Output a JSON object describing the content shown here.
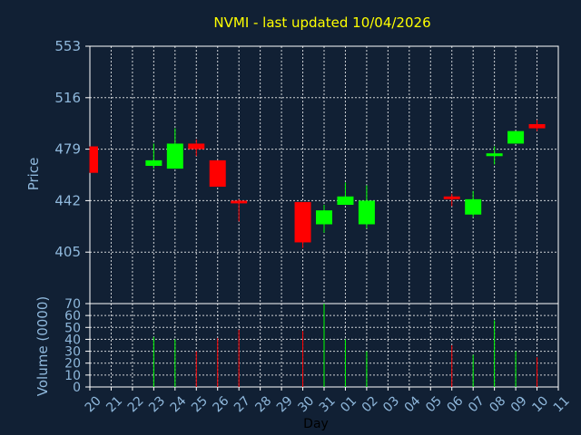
{
  "chart_data": [
    {
      "type": "candlestick",
      "title": "NVMI - last updated 10/04/2026",
      "ylabel": "Price",
      "ylim": [
        368,
        553
      ],
      "yticks": [
        553,
        516,
        479,
        442,
        405
      ],
      "grid": true,
      "x": [
        "20",
        "21",
        "22",
        "23",
        "24",
        "25",
        "26",
        "27",
        "28",
        "29",
        "30",
        "31",
        "01",
        "02",
        "03",
        "04",
        "05",
        "06",
        "07",
        "08",
        "09",
        "10",
        "11"
      ],
      "candles": [
        {
          "x": "20",
          "open": 481,
          "close": 462,
          "high": 481,
          "low": 462
        },
        {
          "x": "23",
          "open": 467,
          "close": 471,
          "high": 483,
          "low": 465
        },
        {
          "x": "24",
          "open": 465,
          "close": 483,
          "high": 494,
          "low": 465
        },
        {
          "x": "25",
          "open": 483,
          "close": 479,
          "high": 486,
          "low": 474
        },
        {
          "x": "26",
          "open": 471,
          "close": 452,
          "high": 471,
          "low": 452
        },
        {
          "x": "27",
          "open": 442,
          "close": 441,
          "high": 443,
          "low": 427
        },
        {
          "x": "30",
          "open": 441,
          "close": 412,
          "high": 441,
          "low": 408
        },
        {
          "x": "31",
          "open": 425,
          "close": 435,
          "high": 439,
          "low": 419
        },
        {
          "x": "01",
          "open": 439,
          "close": 445,
          "high": 455,
          "low": 439
        },
        {
          "x": "02",
          "open": 425,
          "close": 442,
          "high": 453,
          "low": 422
        },
        {
          "x": "06",
          "open": 445,
          "close": 444,
          "high": 447,
          "low": 438
        },
        {
          "x": "07",
          "open": 432,
          "close": 443,
          "high": 449,
          "low": 430
        },
        {
          "x": "08",
          "open": 474,
          "close": 476,
          "high": 481,
          "low": 468
        },
        {
          "x": "09",
          "open": 483,
          "close": 492,
          "high": 492,
          "low": 483
        },
        {
          "x": "10",
          "open": 497,
          "close": 494,
          "high": 500,
          "low": 492
        }
      ]
    },
    {
      "type": "bar",
      "ylabel": "Volume (0000)",
      "ylim": [
        0,
        70
      ],
      "yticks": [
        0,
        10,
        20,
        30,
        40,
        50,
        60,
        70
      ],
      "xlabel": "Day",
      "grid": true,
      "bars": [
        {
          "x": "23",
          "value": 42,
          "direction": "up"
        },
        {
          "x": "24",
          "value": 40,
          "direction": "up"
        },
        {
          "x": "25",
          "value": 30,
          "direction": "down"
        },
        {
          "x": "26",
          "value": 41,
          "direction": "down"
        },
        {
          "x": "27",
          "value": 48,
          "direction": "down"
        },
        {
          "x": "30",
          "value": 47,
          "direction": "down"
        },
        {
          "x": "31",
          "value": 70,
          "direction": "up"
        },
        {
          "x": "01",
          "value": 40,
          "direction": "up"
        },
        {
          "x": "02",
          "value": 30,
          "direction": "up"
        },
        {
          "x": "06",
          "value": 35,
          "direction": "down"
        },
        {
          "x": "07",
          "value": 27,
          "direction": "up"
        },
        {
          "x": "08",
          "value": 56,
          "direction": "up"
        },
        {
          "x": "09",
          "value": 30,
          "direction": "up"
        },
        {
          "x": "10",
          "value": 25,
          "direction": "down"
        }
      ]
    }
  ],
  "colors": {
    "background": "#112034",
    "up": "#00ff00",
    "down": "#ff0000",
    "grid": "#ffffff",
    "axis_text": "#8fb8dc",
    "title": "#ffff00"
  }
}
